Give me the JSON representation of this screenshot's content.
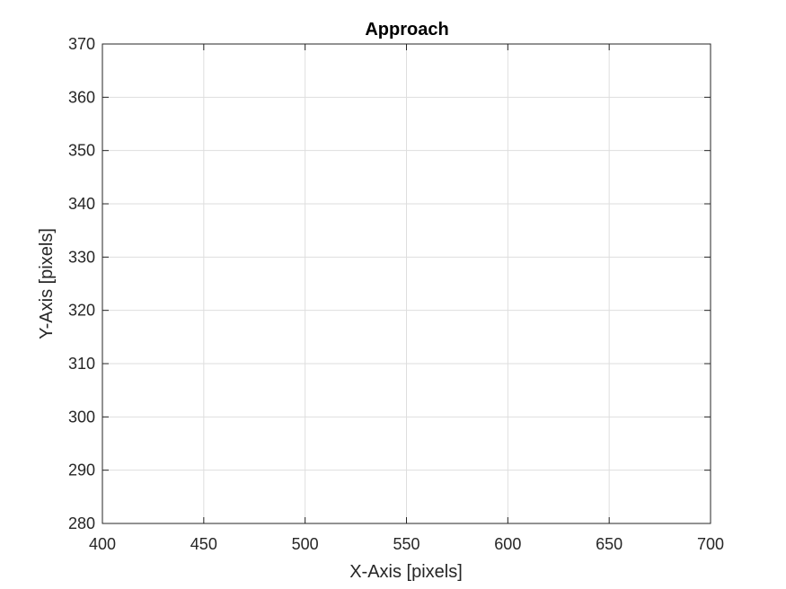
{
  "chart_data": {
    "type": "scatter",
    "title": "Approach",
    "xlabel": "X-Axis [pixels]",
    "ylabel": "Y-Axis [pixels]",
    "xlim": [
      400,
      700
    ],
    "ylim": [
      280,
      370
    ],
    "xticks": [
      "400",
      "450",
      "500",
      "550",
      "600",
      "650",
      "700"
    ],
    "yticks": [
      "280",
      "290",
      "300",
      "310",
      "320",
      "330",
      "340",
      "350",
      "360",
      "370"
    ],
    "grid": true,
    "series": []
  },
  "colors": {
    "axis": "#262626",
    "grid": "#dedede",
    "background": "#ffffff"
  }
}
